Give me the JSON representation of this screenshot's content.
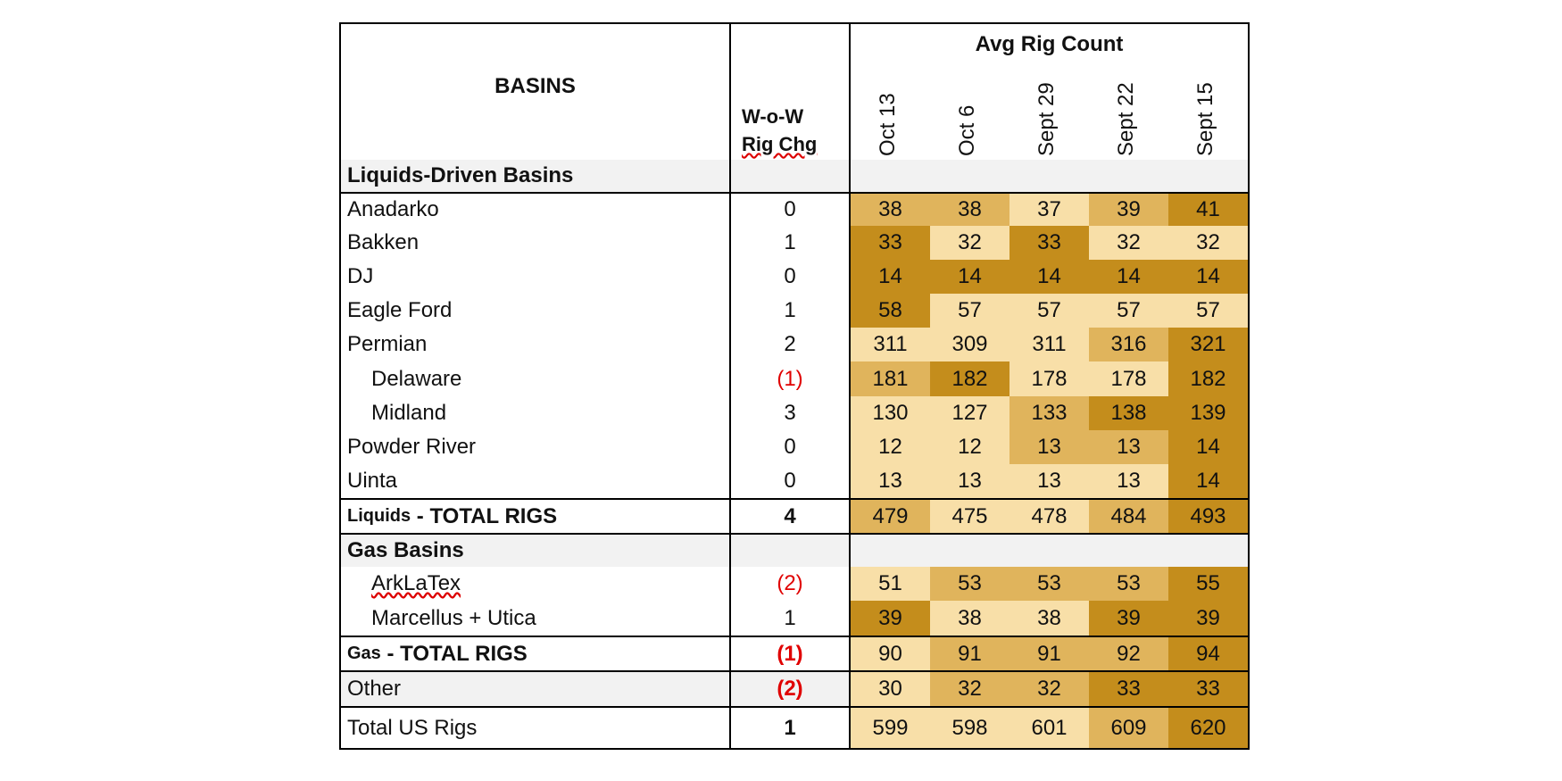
{
  "header": {
    "basins_label": "BASINS",
    "chg_label_line1": "W-o-W",
    "chg_label_line2": "Rig Chg",
    "avg_title": "Avg Rig Count",
    "dates": [
      "Oct 13",
      "Oct 6",
      "Sept 29",
      "Sept 22",
      "Sept 15"
    ]
  },
  "sections": {
    "liquids": "Liquids-Driven Basins",
    "gas": "Gas Basins"
  },
  "rows": {
    "anadarko": {
      "name": "Anadarko",
      "chg": "0",
      "vals": [
        "38",
        "38",
        "37",
        "39",
        "41"
      ]
    },
    "bakken": {
      "name": "Bakken",
      "chg": "1",
      "vals": [
        "33",
        "32",
        "33",
        "32",
        "32"
      ]
    },
    "dj": {
      "name": "DJ",
      "chg": "0",
      "vals": [
        "14",
        "14",
        "14",
        "14",
        "14"
      ]
    },
    "eagle_ford": {
      "name": "Eagle Ford",
      "chg": "1",
      "vals": [
        "58",
        "57",
        "57",
        "57",
        "57"
      ]
    },
    "permian": {
      "name": "Permian",
      "chg": "2",
      "vals": [
        "311",
        "309",
        "311",
        "316",
        "321"
      ]
    },
    "delaware": {
      "name": "Delaware",
      "chg": "(1)",
      "vals": [
        "181",
        "182",
        "178",
        "178",
        "182"
      ]
    },
    "midland": {
      "name": "Midland",
      "chg": "3",
      "vals": [
        "130",
        "127",
        "133",
        "138",
        "139"
      ]
    },
    "powder_river": {
      "name": "Powder River",
      "chg": "0",
      "vals": [
        "12",
        "12",
        "13",
        "13",
        "14"
      ]
    },
    "uinta": {
      "name": "Uinta",
      "chg": "0",
      "vals": [
        "13",
        "13",
        "13",
        "13",
        "14"
      ]
    },
    "liquids_total": {
      "name_small": "Liquids",
      "name_rest": " - TOTAL RIGS",
      "chg": "4",
      "vals": [
        "479",
        "475",
        "478",
        "484",
        "493"
      ]
    },
    "arklatex": {
      "name": "ArkLaTex",
      "chg": "(2)",
      "vals": [
        "51",
        "53",
        "53",
        "53",
        "55"
      ]
    },
    "marcellus": {
      "name": "Marcellus + Utica",
      "chg": "1",
      "vals": [
        "39",
        "38",
        "38",
        "39",
        "39"
      ]
    },
    "gas_total": {
      "name_small": "Gas",
      "name_rest": " - TOTAL RIGS",
      "chg": "(1)",
      "vals": [
        "90",
        "91",
        "91",
        "92",
        "94"
      ]
    },
    "other": {
      "name": "Other",
      "chg": "(2)",
      "vals": [
        "30",
        "32",
        "32",
        "33",
        "33"
      ]
    },
    "total_us": {
      "name": "Total US Rigs",
      "chg": "1",
      "vals": [
        "599",
        "598",
        "601",
        "609",
        "620"
      ]
    }
  },
  "colors": {
    "light": "#f8dfa8",
    "medium": "#e0b45c",
    "dark": "#c48d1c",
    "negative": "#e00000",
    "section_bg": "#f2f2f2"
  },
  "shading": {
    "anadarko": [
      "medium",
      "medium",
      "light",
      "medium",
      "dark"
    ],
    "bakken": [
      "dark",
      "light",
      "dark",
      "light",
      "light"
    ],
    "dj": [
      "dark",
      "dark",
      "dark",
      "dark",
      "dark"
    ],
    "eagle_ford": [
      "dark",
      "light",
      "light",
      "light",
      "light"
    ],
    "permian": [
      "light",
      "light",
      "light",
      "medium",
      "dark"
    ],
    "delaware": [
      "medium",
      "dark",
      "light",
      "light",
      "dark"
    ],
    "midland": [
      "light",
      "light",
      "medium",
      "dark",
      "dark"
    ],
    "powder_river": [
      "light",
      "light",
      "medium",
      "medium",
      "dark"
    ],
    "uinta": [
      "light",
      "light",
      "light",
      "light",
      "dark"
    ],
    "liquids_total": [
      "medium",
      "light",
      "light",
      "medium",
      "dark"
    ],
    "arklatex": [
      "light",
      "medium",
      "medium",
      "medium",
      "dark"
    ],
    "marcellus": [
      "dark",
      "light",
      "light",
      "dark",
      "dark"
    ],
    "gas_total": [
      "light",
      "medium",
      "medium",
      "medium",
      "dark"
    ],
    "other": [
      "light",
      "medium",
      "medium",
      "dark",
      "dark"
    ],
    "total_us": [
      "light",
      "light",
      "light",
      "medium",
      "dark"
    ]
  }
}
